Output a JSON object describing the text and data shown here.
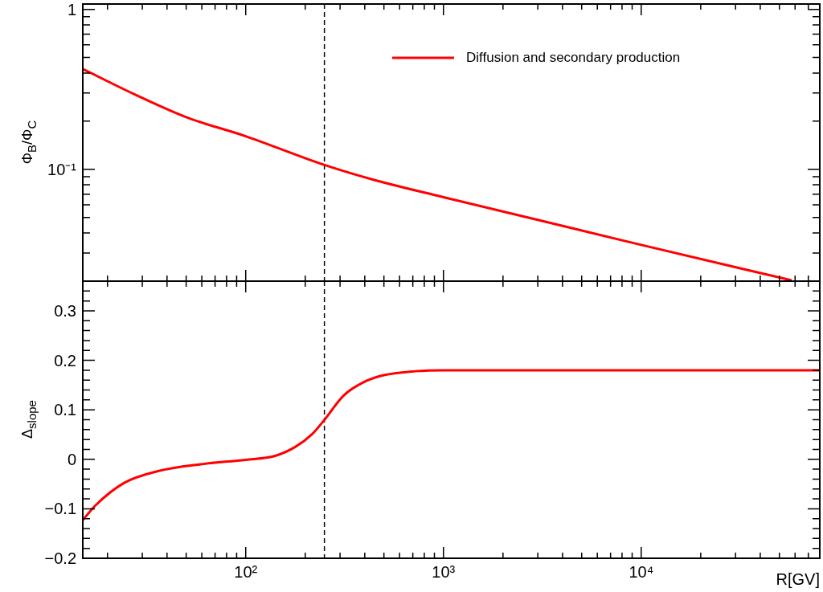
{
  "chart_data": [
    {
      "type": "line",
      "ylabel": "Φ$_{B}$/Φ$_{C}$",
      "log": "xy",
      "legend": "top right",
      "tick_labels": "y",
      "line_style": "solid",
      "marker": "none",
      "xlim": [
        15,
        80000
      ],
      "xticks": [
        {
          "value": 20,
          "label": null
        },
        {
          "value": 30,
          "label": null
        },
        {
          "value": 40,
          "label": null
        },
        {
          "value": 50,
          "label": null
        },
        {
          "value": 60,
          "label": null
        },
        {
          "value": 70,
          "label": null
        },
        {
          "value": 80,
          "label": null
        },
        {
          "value": 90,
          "label": null
        },
        {
          "value": 100,
          "label": null
        },
        {
          "value": 200,
          "label": null
        },
        {
          "value": 300,
          "label": null
        },
        {
          "value": 400,
          "label": null
        },
        {
          "value": 500,
          "label": null
        },
        {
          "value": 600,
          "label": null
        },
        {
          "value": 700,
          "label": null
        },
        {
          "value": 800,
          "label": null
        },
        {
          "value": 900,
          "label": null
        },
        {
          "value": 1000,
          "label": null
        },
        {
          "value": 2000,
          "label": null
        },
        {
          "value": 3000,
          "label": null
        },
        {
          "value": 4000,
          "label": null
        },
        {
          "value": 5000,
          "label": null
        },
        {
          "value": 6000,
          "label": null
        },
        {
          "value": 7000,
          "label": null
        },
        {
          "value": 8000,
          "label": null
        },
        {
          "value": 9000,
          "label": null
        },
        {
          "value": 10000,
          "label": null
        },
        {
          "value": 20000,
          "label": null
        },
        {
          "value": 30000,
          "label": null
        },
        {
          "value": 40000,
          "label": null
        },
        {
          "value": 50000,
          "label": null
        },
        {
          "value": 60000,
          "label": null
        },
        {
          "value": 70000,
          "label": null
        },
        {
          "value": 80000,
          "label": null
        }
      ],
      "ylim": [
        0.02,
        1.08
      ],
      "yticks": [
        {
          "value": 0.03,
          "label": null
        },
        {
          "value": 0.04,
          "label": null
        },
        {
          "value": 0.05,
          "label": null
        },
        {
          "value": 0.06,
          "label": null
        },
        {
          "value": 0.07,
          "label": null
        },
        {
          "value": 0.08,
          "label": null
        },
        {
          "value": 0.09,
          "label": null
        },
        {
          "value": 0.1,
          "label": "10⁻¹"
        },
        {
          "value": 0.2,
          "label": null
        },
        {
          "value": 0.3,
          "label": null
        },
        {
          "value": 0.4,
          "label": null
        },
        {
          "value": 0.5,
          "label": null
        },
        {
          "value": 0.6,
          "label": null
        },
        {
          "value": 0.7,
          "label": null
        },
        {
          "value": 0.8,
          "label": null
        },
        {
          "value": 0.9,
          "label": null
        },
        1
      ],
      "ref_lines": [
        {
          "axis": "x",
          "value": 250,
          "color": "#000000",
          "line_style": "dashed"
        }
      ],
      "series": [
        {
          "name": "Diffusion and secondary production",
          "color": "#ff0000",
          "x": [
            15,
            27,
            51,
            100,
            247,
            446,
            1000,
            3000,
            10000,
            57000
          ],
          "values": [
            0.424,
            0.297,
            0.21,
            0.161,
            0.107,
            0.0858,
            0.067,
            0.0483,
            0.0337,
            0.0203
          ]
        }
      ]
    },
    {
      "type": "line",
      "xlabel": "R[GV]",
      "ylabel": "Δ$_{slope}$",
      "log": "x",
      "legend": false,
      "line_style": "solid",
      "marker": "none",
      "xlim": [
        15,
        80000
      ],
      "xticks": [
        {
          "value": 20,
          "label": null
        },
        {
          "value": 30,
          "label": null
        },
        {
          "value": 40,
          "label": null
        },
        {
          "value": 50,
          "label": null
        },
        {
          "value": 60,
          "label": null
        },
        {
          "value": 70,
          "label": null
        },
        {
          "value": 80,
          "label": null
        },
        {
          "value": 90,
          "label": null
        },
        {
          "value": 100,
          "label": "10²"
        },
        {
          "value": 200,
          "label": null
        },
        {
          "value": 300,
          "label": null
        },
        {
          "value": 400,
          "label": null
        },
        {
          "value": 500,
          "label": null
        },
        {
          "value": 600,
          "label": null
        },
        {
          "value": 700,
          "label": null
        },
        {
          "value": 800,
          "label": null
        },
        {
          "value": 900,
          "label": null
        },
        {
          "value": 1000,
          "label": "10³"
        },
        {
          "value": 2000,
          "label": null
        },
        {
          "value": 3000,
          "label": null
        },
        {
          "value": 4000,
          "label": null
        },
        {
          "value": 5000,
          "label": null
        },
        {
          "value": 6000,
          "label": null
        },
        {
          "value": 7000,
          "label": null
        },
        {
          "value": 8000,
          "label": null
        },
        {
          "value": 9000,
          "label": null
        },
        {
          "value": 10000,
          "label": "10⁴"
        },
        {
          "value": 20000,
          "label": null
        },
        {
          "value": 30000,
          "label": null
        },
        {
          "value": 40000,
          "label": null
        },
        {
          "value": 50000,
          "label": null
        },
        {
          "value": 60000,
          "label": null
        },
        {
          "value": 70000,
          "label": null
        },
        {
          "value": 80000,
          "label": null
        }
      ],
      "ylim": [
        -0.2,
        0.36
      ],
      "yticks": [
        {
          "value": -0.2,
          "label": "−0.2"
        },
        {
          "value": -0.18,
          "label": null
        },
        {
          "value": -0.16,
          "label": null
        },
        {
          "value": -0.14,
          "label": null
        },
        {
          "value": -0.12,
          "label": null
        },
        {
          "value": -0.1,
          "label": "−0.1"
        },
        {
          "value": -0.08,
          "label": null
        },
        {
          "value": -0.06,
          "label": null
        },
        {
          "value": -0.04,
          "label": null
        },
        {
          "value": -0.02,
          "label": null
        },
        0,
        {
          "value": 0.02,
          "label": null
        },
        {
          "value": 0.04,
          "label": null
        },
        {
          "value": 0.06,
          "label": null
        },
        {
          "value": 0.08,
          "label": null
        },
        0.1,
        {
          "value": 0.12,
          "label": null
        },
        {
          "value": 0.14,
          "label": null
        },
        {
          "value": 0.16,
          "label": null
        },
        {
          "value": 0.18,
          "label": null
        },
        0.2,
        {
          "value": 0.22,
          "label": null
        },
        {
          "value": 0.24,
          "label": null
        },
        {
          "value": 0.26,
          "label": null
        },
        {
          "value": 0.28,
          "label": null
        },
        0.3,
        {
          "value": 0.32,
          "label": null
        },
        {
          "value": 0.34,
          "label": null
        }
      ],
      "ref_lines": [
        {
          "axis": "x",
          "value": 250,
          "color": "#000000",
          "line_style": "dashed"
        }
      ],
      "series": [
        {
          "color": "#ff0000",
          "x": [
            15,
            17.3,
            24.2,
            36,
            59.3,
            100,
            141,
            178,
            217,
            247,
            313,
            396,
            500,
            721,
            1000,
            80000
          ],
          "values": [
            -0.123,
            -0.094,
            -0.048,
            -0.024,
            -0.01,
            -0.001,
            0.007,
            0.025,
            0.051,
            0.077,
            0.129,
            0.156,
            0.17,
            0.178,
            0.18,
            0.18
          ]
        }
      ]
    }
  ]
}
